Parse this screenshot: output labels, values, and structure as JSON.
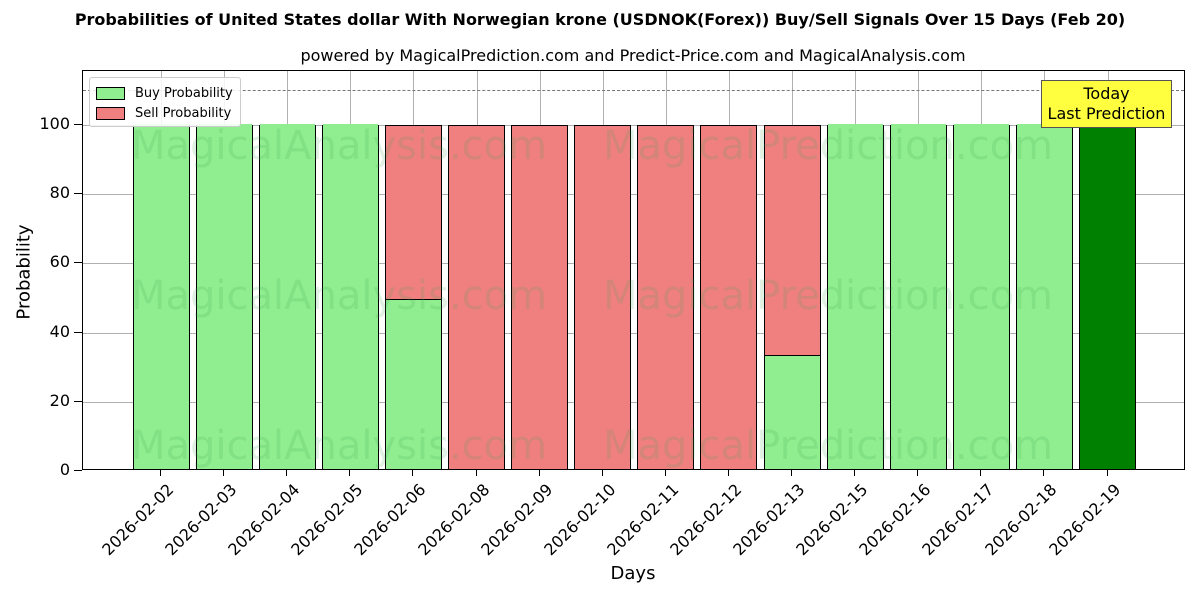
{
  "header": {
    "title": "Probabilities of United States dollar With Norwegian krone (USDNOK(Forex)) Buy/Sell Signals Over 15 Days (Feb 20)",
    "subtitle": "powered by MagicalPrediction.com and Predict-Price.com and MagicalAnalysis.com"
  },
  "legend": {
    "buy_label": "Buy Probability",
    "sell_label": "Sell Probability"
  },
  "annotation": {
    "line1": "Today",
    "line2": "Last Prediction"
  },
  "watermarks": [
    "MagicalAnalysis.com",
    "MagicalPrediction.com"
  ],
  "colors": {
    "buy": "#90ee90",
    "sell": "#f08080",
    "today": "#008000",
    "annotation_bg": "#ffff40",
    "dashed_line": "#777777"
  },
  "chart_data": {
    "type": "bar",
    "stacked": true,
    "title": "Probabilities of United States dollar With Norwegian krone (USDNOK(Forex)) Buy/Sell Signals Over 15 Days (Feb 20)",
    "subtitle": "powered by MagicalPrediction.com and Predict-Price.com and MagicalAnalysis.com",
    "xlabel": "Days",
    "ylabel": "Probability",
    "ylim": [
      0,
      115
    ],
    "yticks": [
      0,
      20,
      40,
      60,
      80,
      100
    ],
    "grid": true,
    "legend_position": "upper left",
    "reference_line": {
      "y": 110,
      "style": "dashed"
    },
    "categories": [
      "2026-02-02",
      "2026-02-03",
      "2026-02-04",
      "2026-02-05",
      "2026-02-06",
      "2026-02-08",
      "2026-02-09",
      "2026-02-10",
      "2026-02-11",
      "2026-02-12",
      "2026-02-13",
      "2026-02-15",
      "2026-02-16",
      "2026-02-17",
      "2026-02-18",
      "2026-02-19"
    ],
    "series": [
      {
        "name": "Buy Probability",
        "values": [
          100,
          100,
          100,
          100,
          49.5,
          0,
          0,
          0,
          0,
          0,
          33.3,
          100,
          100,
          100,
          100,
          100
        ]
      },
      {
        "name": "Sell Probability",
        "values": [
          0,
          0,
          0,
          0,
          50.5,
          100,
          100,
          100,
          100,
          100,
          66.7,
          0,
          0,
          0,
          0,
          0
        ]
      }
    ],
    "highlight": {
      "category": "2026-02-19",
      "label": "Today Last Prediction",
      "color": "#008000"
    }
  }
}
